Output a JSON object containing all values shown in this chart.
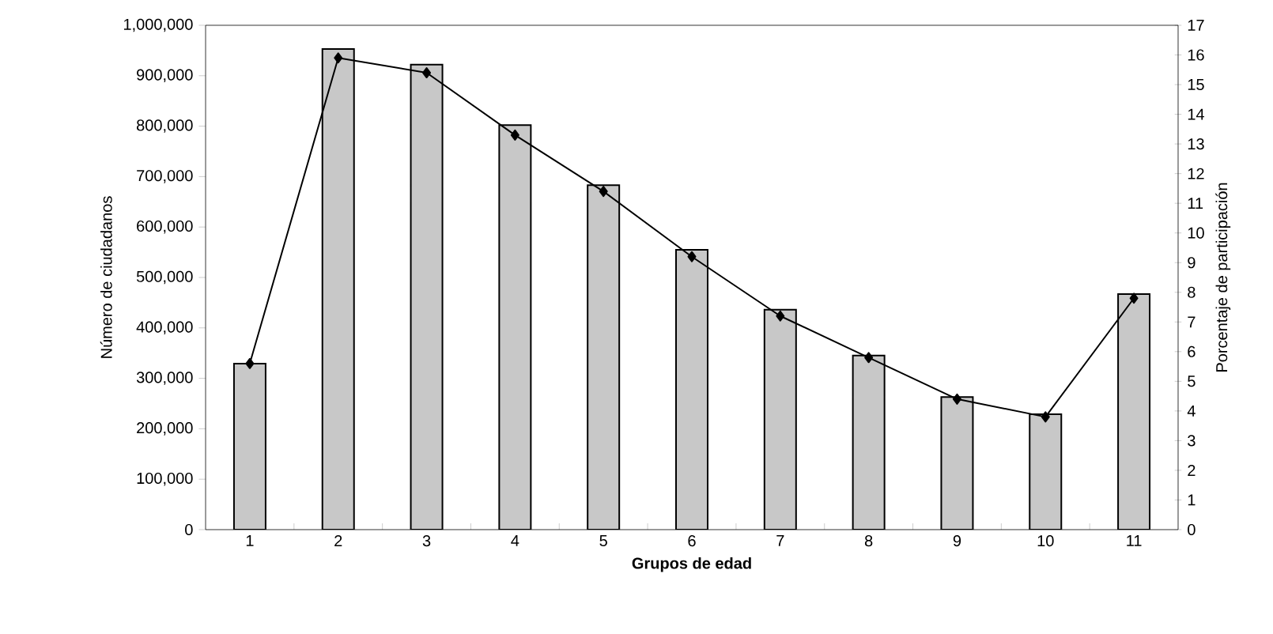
{
  "chart_data": {
    "type": "bar",
    "xlabel": "Grupos de edad",
    "ylabel": "Número de ciudadanos",
    "y2label": "Porcentaje de participación",
    "categories": [
      "1",
      "2",
      "3",
      "4",
      "5",
      "6",
      "7",
      "8",
      "9",
      "10",
      "11"
    ],
    "series": [
      {
        "color": "#c8c8c8",
        "values": [
          329000,
          953000,
          922000,
          802000,
          683000,
          555000,
          436000,
          345000,
          263000,
          229000,
          467000
        ]
      },
      {
        "type": "line",
        "axis": "y2",
        "color": "#000000",
        "marker": "diamond",
        "values": [
          5.6,
          15.9,
          15.4,
          13.3,
          11.4,
          9.2,
          7.2,
          5.8,
          4.4,
          3.8,
          7.8
        ]
      }
    ],
    "ylim": [
      0,
      1000000
    ],
    "yticks": [
      {
        "value": 0,
        "label": "0"
      },
      {
        "value": 100000,
        "label": "100,000"
      },
      {
        "value": 200000,
        "label": "200,000"
      },
      {
        "value": 300000,
        "label": "300,000"
      },
      {
        "value": 400000,
        "label": "400,000"
      },
      {
        "value": 500000,
        "label": "500,000"
      },
      {
        "value": 600000,
        "label": "600,000"
      },
      {
        "value": 700000,
        "label": "700,000"
      },
      {
        "value": 800000,
        "label": "800,000"
      },
      {
        "value": 900000,
        "label": "900,000"
      },
      {
        "value": 1000000,
        "label": "1,000,000"
      }
    ],
    "y2lim": [
      0,
      17
    ],
    "y2ticks": [
      0,
      1,
      2,
      3,
      4,
      5,
      6,
      7,
      8,
      9,
      10,
      11,
      12,
      13,
      14,
      15,
      16,
      17
    ]
  }
}
